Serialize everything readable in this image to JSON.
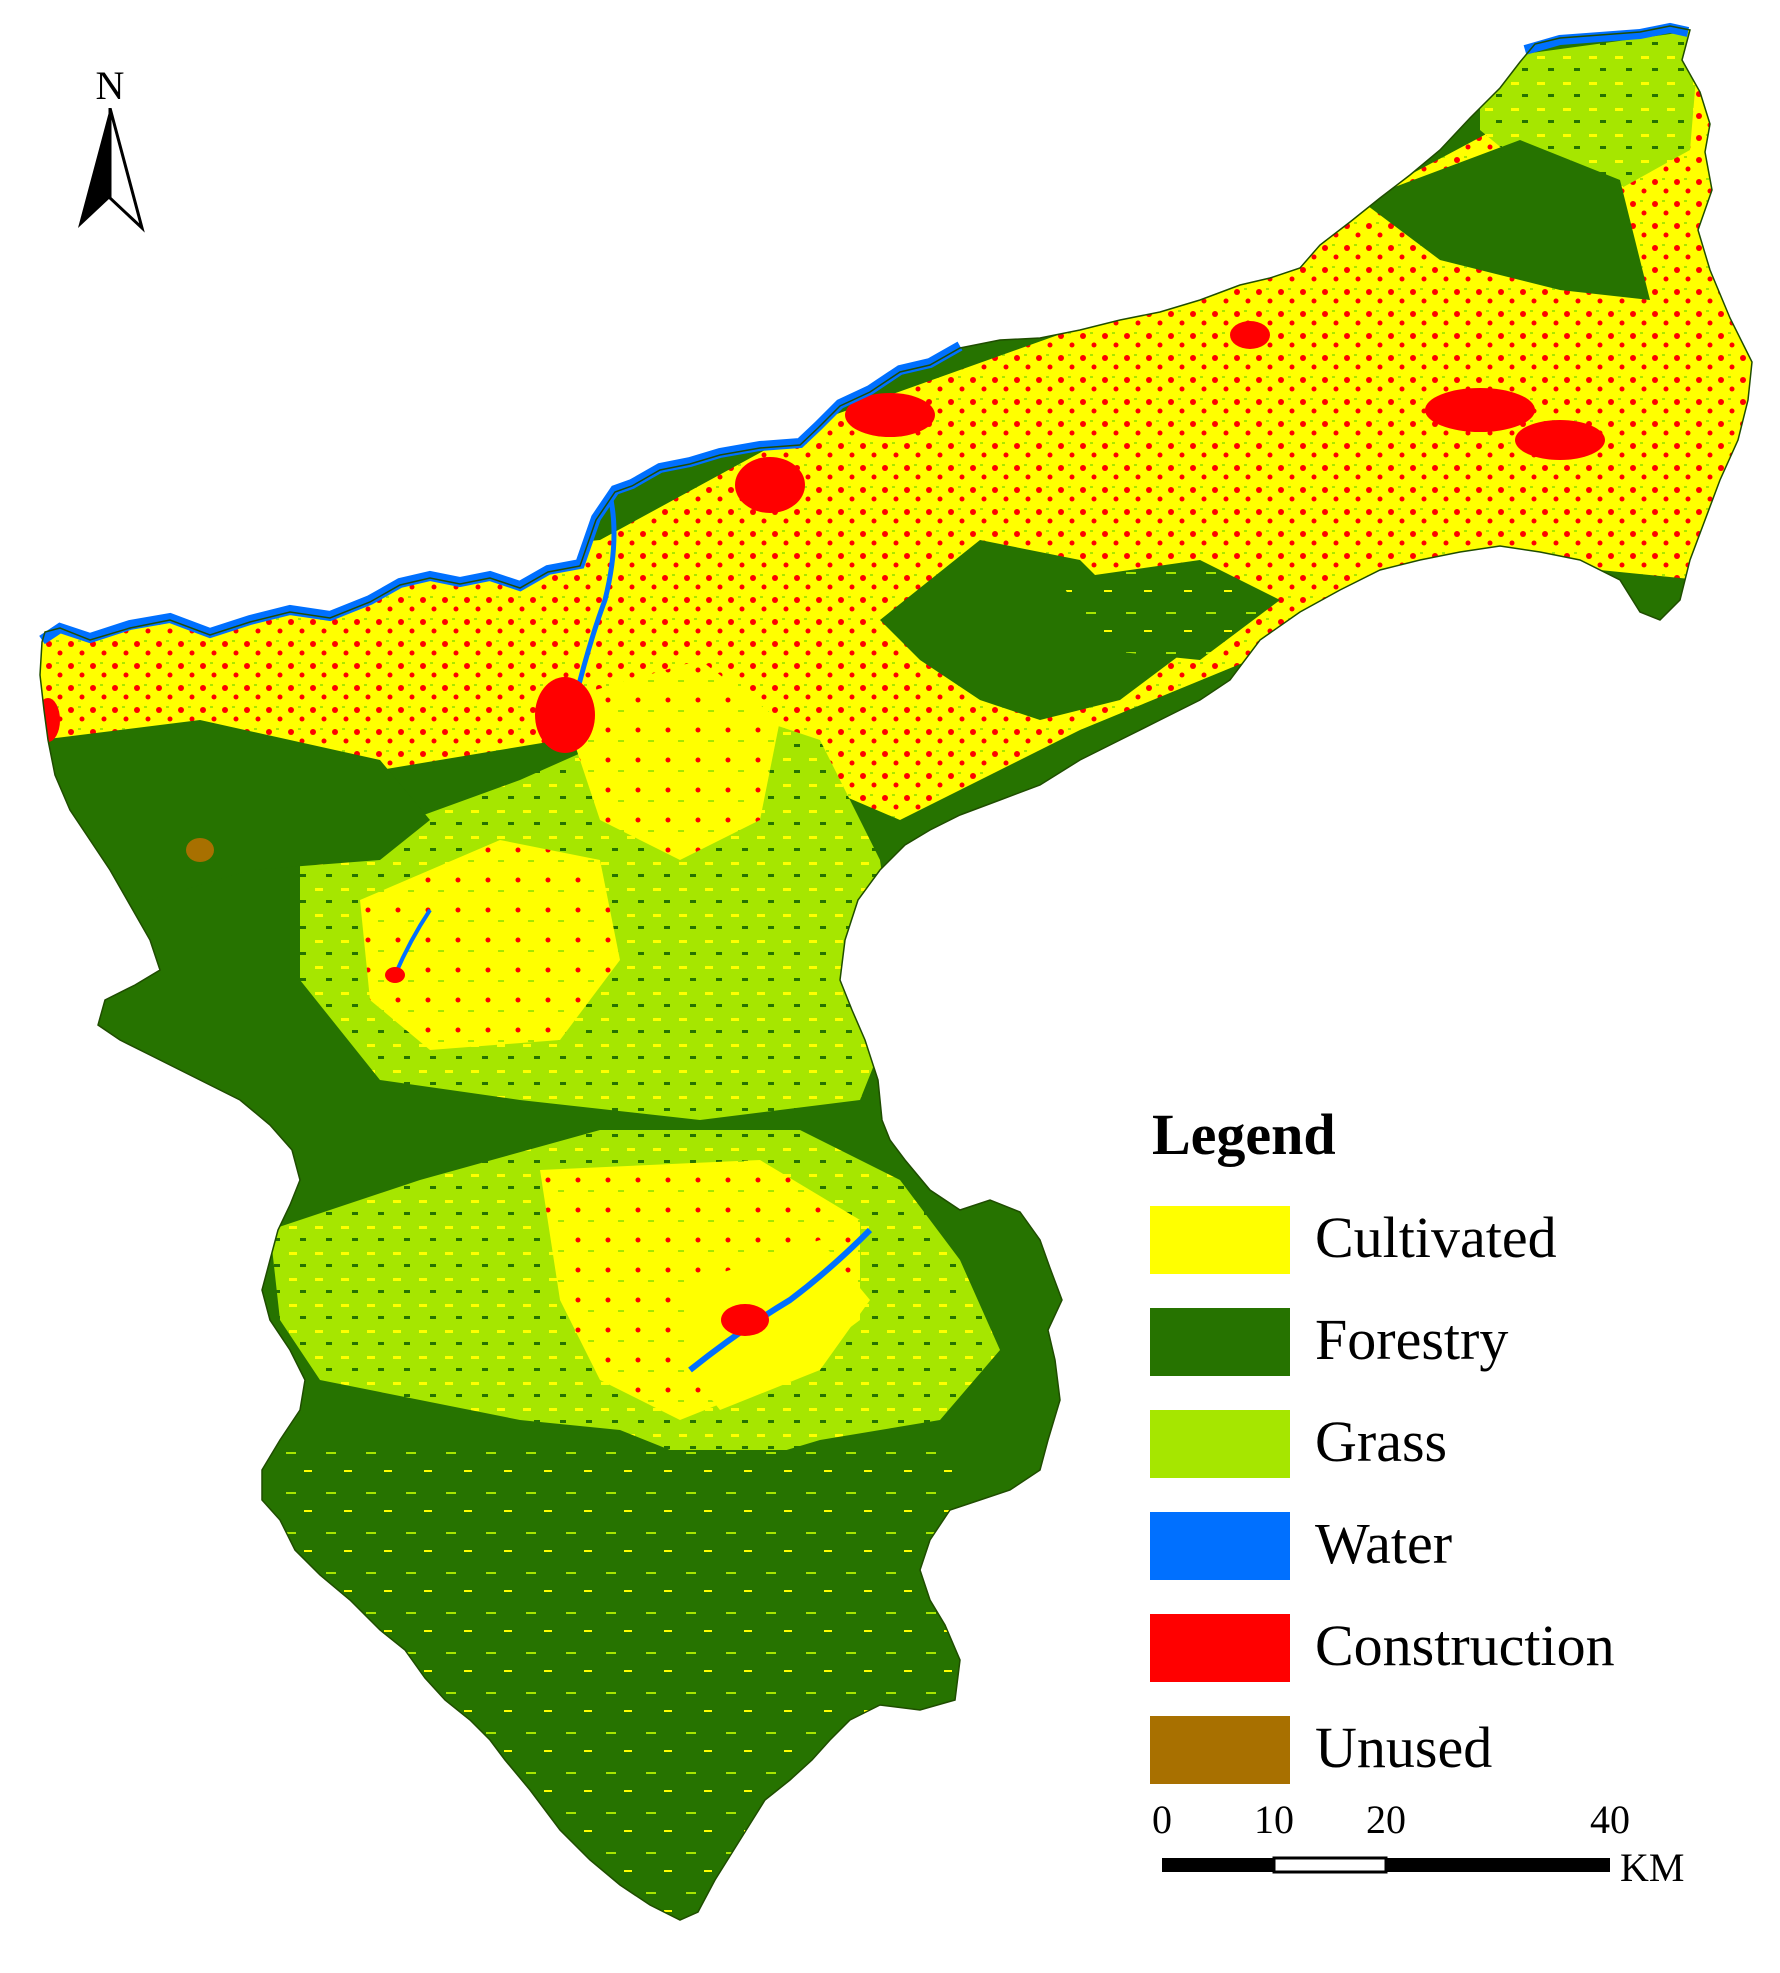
{
  "map": {
    "land_use_classes": [
      {
        "key": "cultivated",
        "label": "Cultivated",
        "color": "#FFFF00"
      },
      {
        "key": "forestry",
        "label": "Forestry",
        "color": "#267300"
      },
      {
        "key": "grass",
        "label": "Grass",
        "color": "#A6E600"
      },
      {
        "key": "water",
        "label": "Water",
        "color": "#0070FF"
      },
      {
        "key": "construction",
        "label": "Construction",
        "color": "#FF0000"
      },
      {
        "key": "unused",
        "label": "Unused",
        "color": "#A87000"
      }
    ]
  },
  "north_arrow": {
    "label": "N"
  },
  "legend": {
    "title": "Legend"
  },
  "scale_bar": {
    "ticks": [
      "0",
      "10",
      "20",
      "40"
    ],
    "unit": "KM"
  }
}
